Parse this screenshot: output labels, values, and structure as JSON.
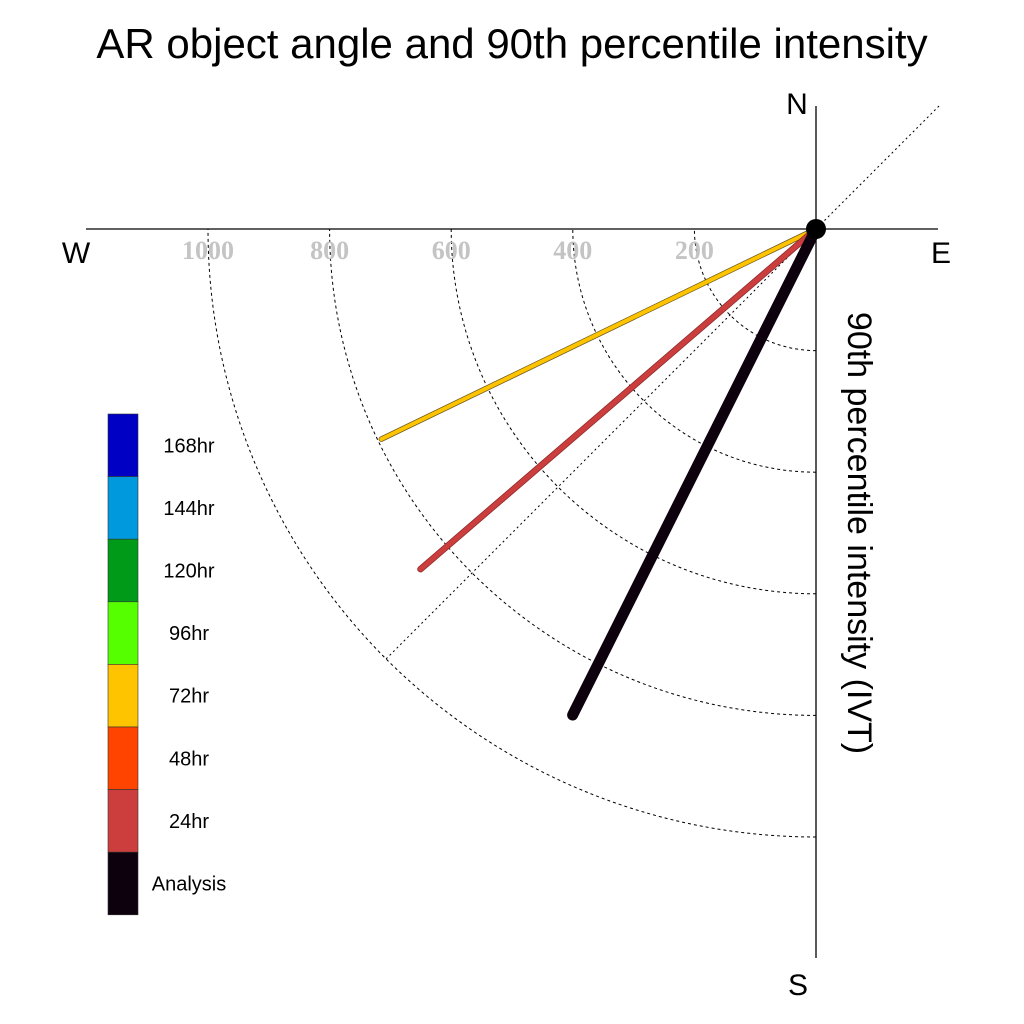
{
  "chart_data": {
    "type": "polar-vector",
    "title": "AR object angle and 90th percentile intensity",
    "ylabel": "90th percentile intensity (IVT)",
    "compass": {
      "north": "N",
      "south": "S",
      "east": "E",
      "west": "W"
    },
    "radial_ticks": [
      200,
      400,
      600,
      800,
      1000
    ],
    "radial_max": 1000,
    "grid": "dashed quarter-circle arcs in SW quadrant, dotted NE-SW diagonal",
    "legend": {
      "position": "lower-left",
      "entries": [
        {
          "label": "168hr",
          "color": "#0000c4"
        },
        {
          "label": "144hr",
          "color": "#0099dd"
        },
        {
          "label": "120hr",
          "color": "#009a19"
        },
        {
          "label": "96hr",
          "color": "#55ff00"
        },
        {
          "label": "72hr",
          "color": "#ffc400"
        },
        {
          "label": "48hr",
          "color": "#ff4400"
        },
        {
          "label": "24hr",
          "color": "#cc3e3e"
        },
        {
          "label": "Analysis",
          "color": "#0c010c"
        }
      ]
    },
    "series": [
      {
        "name": "72hr",
        "color": "#ffc400",
        "outline": "#6e5a20",
        "angle_deg_below_west": 25.8,
        "intensity": 794
      },
      {
        "name": "24hr",
        "color": "#cc3e3e",
        "outline": "#8a2a2a",
        "angle_deg_below_west": 40.7,
        "intensity": 858
      },
      {
        "name": "Analysis",
        "color": "#0c010c",
        "outline": "#0c010c",
        "angle_deg_below_west": 63.4,
        "intensity": 894
      }
    ]
  }
}
